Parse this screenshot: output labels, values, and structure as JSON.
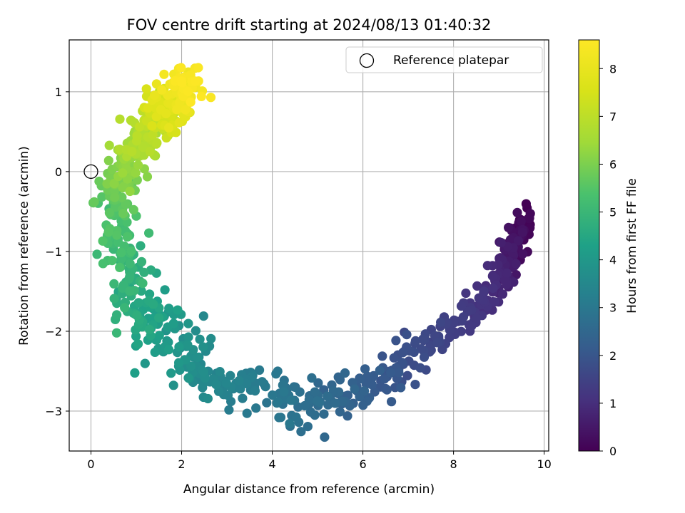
{
  "chart_data": {
    "type": "scatter",
    "title": "FOV centre drift starting at 2024/08/13 01:40:32",
    "xlabel": "Angular distance from reference (arcmin)",
    "ylabel": "Rotation from reference (arcmin)",
    "xlim": [
      -0.48,
      10.1
    ],
    "ylim": [
      -3.5,
      1.65
    ],
    "x_ticks": [
      0,
      2,
      4,
      6,
      8,
      10
    ],
    "y_ticks": [
      -3,
      -2,
      -1,
      0,
      1
    ],
    "grid": true,
    "legend_position": "top-right",
    "legend": [
      {
        "label": "Reference platepar",
        "marker": "open-circle"
      }
    ],
    "reference_point": {
      "x": 0,
      "y": 0
    },
    "colorbar": {
      "label": "Hours from first FF file",
      "min": 0,
      "max": 8.6,
      "ticks": [
        0,
        1,
        2,
        3,
        4,
        5,
        6,
        7,
        8
      ],
      "colormap": "viridis"
    },
    "path_keypoints": [
      {
        "hours": 0.0,
        "x": 9.66,
        "y": -0.59
      },
      {
        "hours": 0.3,
        "x": 9.4,
        "y": -0.85
      },
      {
        "hours": 0.6,
        "x": 9.2,
        "y": -1.15
      },
      {
        "hours": 0.9,
        "x": 8.95,
        "y": -1.45
      },
      {
        "hours": 1.2,
        "x": 8.5,
        "y": -1.7
      },
      {
        "hours": 1.5,
        "x": 7.8,
        "y": -2.0
      },
      {
        "hours": 1.8,
        "x": 7.0,
        "y": -2.3
      },
      {
        "hours": 2.1,
        "x": 6.3,
        "y": -2.65
      },
      {
        "hours": 2.5,
        "x": 5.4,
        "y": -2.85
      },
      {
        "hours": 2.8,
        "x": 4.5,
        "y": -2.9
      },
      {
        "hours": 3.1,
        "x": 3.6,
        "y": -2.75
      },
      {
        "hours": 3.5,
        "x": 2.6,
        "y": -2.55
      },
      {
        "hours": 3.9,
        "x": 1.9,
        "y": -2.3
      },
      {
        "hours": 4.3,
        "x": 1.4,
        "y": -1.9
      },
      {
        "hours": 4.7,
        "x": 0.95,
        "y": -1.45
      },
      {
        "hours": 5.1,
        "x": 0.6,
        "y": -1.0
      },
      {
        "hours": 5.5,
        "x": 0.45,
        "y": -0.55
      },
      {
        "hours": 5.9,
        "x": 0.6,
        "y": -0.15
      },
      {
        "hours": 6.3,
        "x": 0.9,
        "y": 0.15
      },
      {
        "hours": 6.7,
        "x": 1.15,
        "y": 0.4
      },
      {
        "hours": 7.1,
        "x": 1.3,
        "y": 0.65
      },
      {
        "hours": 7.5,
        "x": 1.55,
        "y": 0.75
      },
      {
        "hours": 7.9,
        "x": 1.8,
        "y": 0.85
      },
      {
        "hours": 8.3,
        "x": 2.05,
        "y": 1.0
      },
      {
        "hours": 8.6,
        "x": 2.2,
        "y": 1.1
      }
    ],
    "point_count": 900,
    "scatter_spread_arcmin": {
      "x": 0.22,
      "y": 0.14
    }
  }
}
